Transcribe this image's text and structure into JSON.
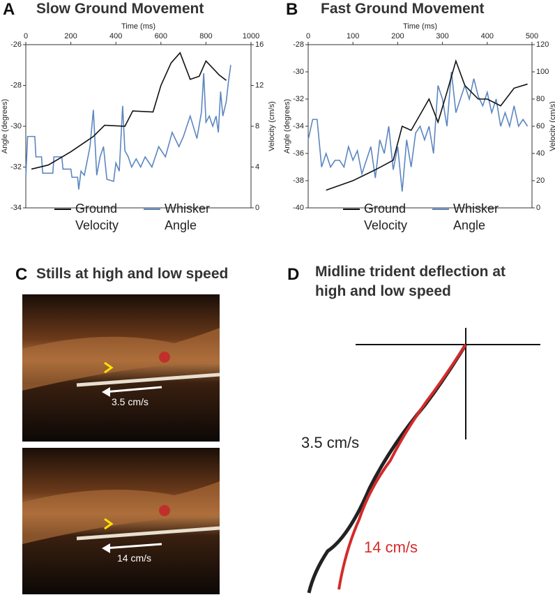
{
  "chart_data": [
    {
      "type": "line",
      "panel": "A",
      "title": "Slow Ground Movement",
      "xlabel": "Time (ms)",
      "ylabel": "Angle (degrees)",
      "y2label": "Velocity (cm/s)",
      "xlim": [
        0,
        1000
      ],
      "xticks": [
        0,
        200,
        400,
        600,
        800,
        1000
      ],
      "ylim": [
        -34,
        -26
      ],
      "yticks": [
        -34,
        -32,
        -30,
        -28,
        -26
      ],
      "y2lim": [
        0,
        16
      ],
      "y2ticks": [
        0,
        4,
        8,
        12,
        16
      ],
      "series": [
        {
          "name": "Ground Velocity",
          "color": "#111111",
          "axis": "y2",
          "x": [
            25,
            100,
            200,
            300,
            350,
            440,
            475,
            565,
            600,
            645,
            685,
            730,
            770,
            800,
            860,
            890
          ],
          "values": [
            3.8,
            4.2,
            5.5,
            7.0,
            8.1,
            8.0,
            9.5,
            9.4,
            12.0,
            14.2,
            15.2,
            12.6,
            12.9,
            14.4,
            13.0,
            12.5
          ]
        },
        {
          "name": "Whisker Angle",
          "color": "#5b86c0",
          "x": [
            0,
            8,
            40,
            45,
            70,
            75,
            120,
            125,
            160,
            165,
            200,
            205,
            230,
            235,
            245,
            260,
            285,
            300,
            315,
            330,
            345,
            360,
            390,
            400,
            415,
            430,
            440,
            455,
            470,
            490,
            510,
            530,
            560,
            590,
            620,
            650,
            680,
            700,
            730,
            760,
            780,
            790,
            800,
            815,
            830,
            845,
            855,
            865,
            875,
            890,
            900,
            910
          ],
          "values": [
            -32.5,
            -30.5,
            -30.5,
            -31.5,
            -31.5,
            -32.3,
            -32.3,
            -31.5,
            -31.5,
            -32.1,
            -32.1,
            -32.5,
            -32.5,
            -33.1,
            -32.2,
            -32.4,
            -31.0,
            -29.2,
            -32.4,
            -31.5,
            -31.0,
            -32.6,
            -32.7,
            -31.8,
            -32.2,
            -29.0,
            -31.2,
            -31.5,
            -32.0,
            -31.6,
            -32.0,
            -31.5,
            -32.0,
            -31.0,
            -31.5,
            -30.3,
            -31.0,
            -30.5,
            -29.5,
            -30.6,
            -29.3,
            -27.4,
            -29.8,
            -29.5,
            -30.0,
            -29.5,
            -30.3,
            -28.3,
            -29.5,
            -28.8,
            -27.8,
            -27.0
          ]
        }
      ]
    },
    {
      "type": "line",
      "panel": "B",
      "title": "Fast Ground Movement",
      "xlabel": "Time (ms)",
      "ylabel": "Angle (degrees)",
      "y2label": "Velocity (cm/s)",
      "xlim": [
        0,
        500
      ],
      "xticks": [
        0,
        100,
        200,
        300,
        400,
        500
      ],
      "ylim": [
        -40,
        -28
      ],
      "yticks": [
        -40,
        -38,
        -36,
        -34,
        -32,
        -30,
        -28
      ],
      "y2lim": [
        0,
        120
      ],
      "y2ticks": [
        0,
        20,
        40,
        60,
        80,
        100,
        120
      ],
      "series": [
        {
          "name": "Ground Velocity",
          "color": "#111111",
          "axis": "y2",
          "x": [
            40,
            100,
            150,
            190,
            210,
            230,
            270,
            290,
            310,
            330,
            350,
            380,
            400,
            430,
            460,
            490
          ],
          "values": [
            13,
            20,
            28,
            35,
            60,
            57,
            80,
            63,
            85,
            108,
            90,
            80,
            80,
            75,
            88,
            91
          ]
        },
        {
          "name": "Whisker Angle",
          "color": "#5b86c0",
          "x": [
            0,
            10,
            20,
            30,
            40,
            50,
            60,
            70,
            80,
            90,
            100,
            110,
            120,
            130,
            140,
            150,
            160,
            170,
            180,
            190,
            200,
            210,
            220,
            230,
            240,
            250,
            260,
            270,
            280,
            290,
            300,
            310,
            320,
            330,
            340,
            350,
            360,
            370,
            380,
            390,
            400,
            410,
            420,
            430,
            440,
            450,
            460,
            470,
            480,
            490
          ],
          "values": [
            -35,
            -33.5,
            -33.5,
            -37,
            -36,
            -37,
            -36.5,
            -36.5,
            -37,
            -35.5,
            -36.5,
            -35.8,
            -37.5,
            -36.5,
            -35.5,
            -37.8,
            -35,
            -36,
            -34,
            -37.2,
            -35.5,
            -38.8,
            -35,
            -37,
            -34.5,
            -34,
            -35,
            -34,
            -36,
            -31,
            -32,
            -34,
            -30,
            -33,
            -32,
            -31,
            -32,
            -30.5,
            -31.8,
            -32.5,
            -31.5,
            -33,
            -32,
            -34,
            -33,
            -34,
            -32.5,
            -34,
            -33.5,
            -34
          ]
        }
      ]
    }
  ],
  "panel_c": {
    "letter": "C",
    "title": "Stills at high and low speed",
    "stills": [
      {
        "label": "3.5 cm/s"
      },
      {
        "label": "14 cm/s"
      }
    ]
  },
  "panel_d": {
    "letter": "D",
    "title": "Midline trident deflection at high and low speed",
    "curves": [
      {
        "label": "3.5 cm/s"
      },
      {
        "label": "14 cm/s"
      }
    ]
  }
}
